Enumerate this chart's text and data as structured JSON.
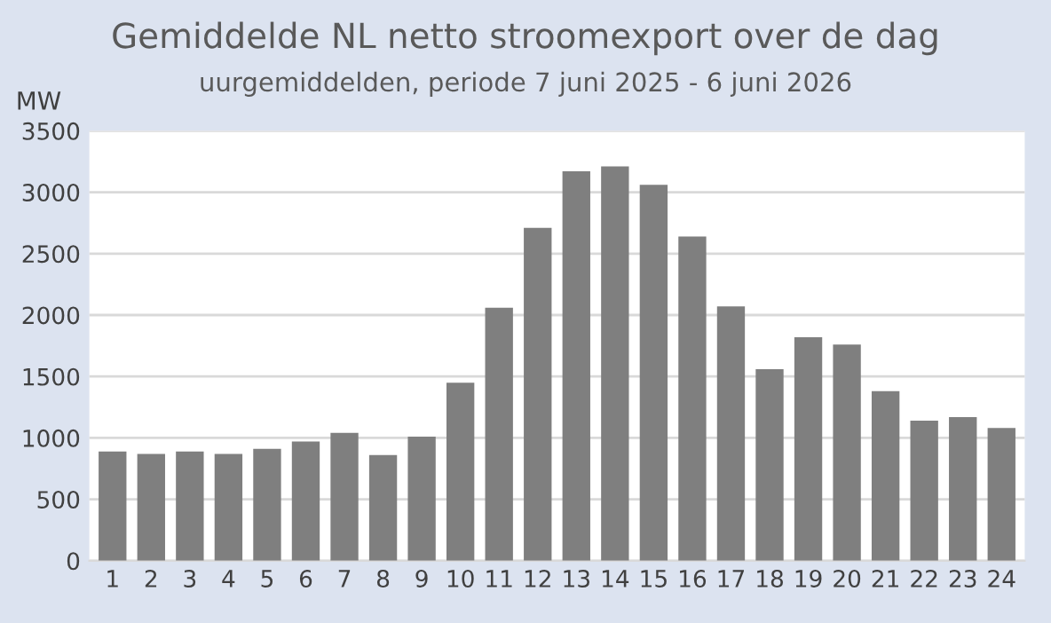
{
  "chart_data": {
    "type": "bar",
    "title": "Gemiddelde NL netto stroomexport over de dag",
    "subtitle": "uurgemiddelden, periode 7 juni 2025 - 6 juni 2026",
    "ylabel": "MW",
    "categories": [
      "1",
      "2",
      "3",
      "4",
      "5",
      "6",
      "7",
      "8",
      "9",
      "10",
      "11",
      "12",
      "13",
      "14",
      "15",
      "16",
      "17",
      "18",
      "19",
      "20",
      "21",
      "22",
      "23",
      "24"
    ],
    "values": [
      890,
      870,
      890,
      870,
      910,
      970,
      1040,
      860,
      1010,
      1450,
      2060,
      2710,
      3170,
      3210,
      3060,
      2640,
      2070,
      1560,
      1820,
      1760,
      1380,
      1140,
      1170,
      1080
    ],
    "color": "#7f7f7f",
    "ylim": [
      0,
      3500
    ],
    "yticks": [
      0,
      500,
      1000,
      1500,
      2000,
      2500,
      3000,
      3500
    ],
    "grid": "y"
  }
}
